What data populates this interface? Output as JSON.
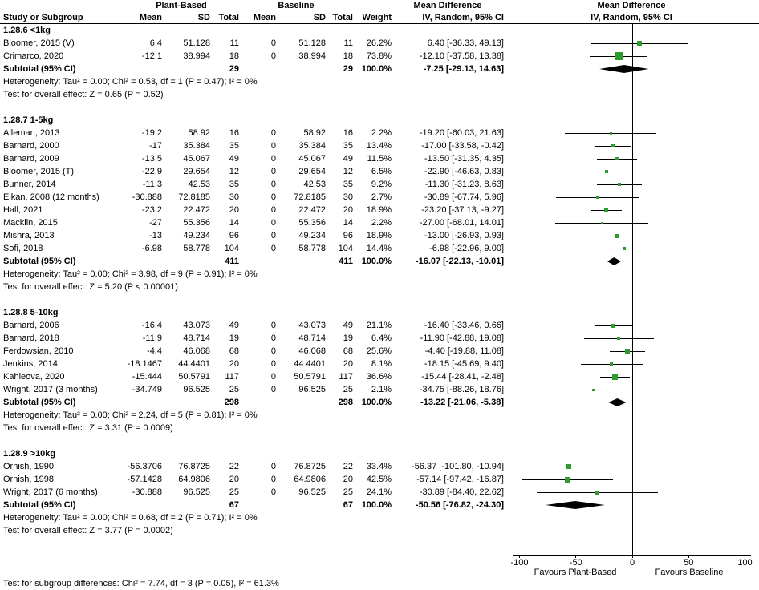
{
  "header": {
    "plant_based": "Plant-Based",
    "baseline": "Baseline",
    "mean_difference": "Mean Difference",
    "study_or_subgroup": "Study or Subgroup",
    "mean": "Mean",
    "sd": "SD",
    "total": "Total",
    "weight": "Weight",
    "ci_method": "IV, Random, 95% CI"
  },
  "colors": {
    "marker_green": "#2E9B2E",
    "diamond_black": "#000000",
    "line_black": "#000000"
  },
  "chart_data": {
    "type": "forest",
    "effect_measure": "Mean Difference, IV, Random, 95% CI",
    "x_axis": {
      "ticks": [
        -100,
        -50,
        0,
        50,
        100
      ],
      "xlim": [
        -105,
        105
      ],
      "label_left": "Favours Plant-Based",
      "label_right": "Favours Baseline"
    },
    "subtotal_label": "Subtotal (95% CI)",
    "groups": [
      {
        "title": "1.28.6 <1kg",
        "studies": [
          {
            "name": "Bloomer, 2015 (V)",
            "mean1": "6.4",
            "sd1": "51.128",
            "total1": "11",
            "mean2": "0",
            "sd2": "51.128",
            "total2": "11",
            "weight": "26.2%",
            "ci_text": "6.40 [-36.33, 49.13]",
            "est": 6.4,
            "lo": -36.33,
            "hi": 49.13,
            "w": 26.2
          },
          {
            "name": "Crimarco, 2020",
            "mean1": "-12.1",
            "sd1": "38.994",
            "total1": "18",
            "mean2": "0",
            "sd2": "38.994",
            "total2": "18",
            "weight": "73.8%",
            "ci_text": "-12.10 [-37.58, 13.38]",
            "est": -12.1,
            "lo": -37.58,
            "hi": 13.38,
            "w": 73.8
          }
        ],
        "subtotal": {
          "total1": "29",
          "total2": "29",
          "weight": "100.0%",
          "ci_text": "-7.25 [-29.13, 14.63]",
          "est": -7.25,
          "lo": -29.13,
          "hi": 14.63
        },
        "heterogeneity": "Heterogeneity: Tau² = 0.00; Chi² = 0.53, df = 1 (P = 0.47); I² = 0%",
        "overall_effect": "Test for overall effect: Z = 0.65 (P = 0.52)"
      },
      {
        "title": "1.28.7 1-5kg",
        "studies": [
          {
            "name": "Alleman, 2013",
            "mean1": "-19.2",
            "sd1": "58.92",
            "total1": "16",
            "mean2": "0",
            "sd2": "58.92",
            "total2": "16",
            "weight": "2.2%",
            "ci_text": "-19.20 [-60.03, 21.63]",
            "est": -19.2,
            "lo": -60.03,
            "hi": 21.63,
            "w": 2.2
          },
          {
            "name": "Barnard, 2000",
            "mean1": "-17",
            "sd1": "35.384",
            "total1": "35",
            "mean2": "0",
            "sd2": "35.384",
            "total2": "35",
            "weight": "13.4%",
            "ci_text": "-17.00 [-33.58, -0.42]",
            "est": -17,
            "lo": -33.58,
            "hi": -0.42,
            "w": 13.4
          },
          {
            "name": "Barnard, 2009",
            "mean1": "-13.5",
            "sd1": "45.067",
            "total1": "49",
            "mean2": "0",
            "sd2": "45.067",
            "total2": "49",
            "weight": "11.5%",
            "ci_text": "-13.50 [-31.35, 4.35]",
            "est": -13.5,
            "lo": -31.35,
            "hi": 4.35,
            "w": 11.5
          },
          {
            "name": "Bloomer, 2015 (T)",
            "mean1": "-22.9",
            "sd1": "29.654",
            "total1": "12",
            "mean2": "0",
            "sd2": "29.654",
            "total2": "12",
            "weight": "6.5%",
            "ci_text": "-22.90 [-46.63, 0.83]",
            "est": -22.9,
            "lo": -46.63,
            "hi": 0.83,
            "w": 6.5
          },
          {
            "name": "Bunner, 2014",
            "mean1": "-11.3",
            "sd1": "42.53",
            "total1": "35",
            "mean2": "0",
            "sd2": "42.53",
            "total2": "35",
            "weight": "9.2%",
            "ci_text": "-11.30 [-31.23, 8.63]",
            "est": -11.3,
            "lo": -31.23,
            "hi": 8.63,
            "w": 9.2
          },
          {
            "name": "Elkan, 2008 (12 months)",
            "mean1": "-30.888",
            "sd1": "72.8185",
            "total1": "30",
            "mean2": "0",
            "sd2": "72.8185",
            "total2": "30",
            "weight": "2.7%",
            "ci_text": "-30.89 [-67.74, 5.96]",
            "est": -30.89,
            "lo": -67.74,
            "hi": 5.96,
            "w": 2.7
          },
          {
            "name": "Hall, 2021",
            "mean1": "-23.2",
            "sd1": "22.472",
            "total1": "20",
            "mean2": "0",
            "sd2": "22.472",
            "total2": "20",
            "weight": "18.9%",
            "ci_text": "-23.20 [-37.13, -9.27]",
            "est": -23.2,
            "lo": -37.13,
            "hi": -9.27,
            "w": 18.9
          },
          {
            "name": "Macklin, 2015",
            "mean1": "-27",
            "sd1": "55.356",
            "total1": "14",
            "mean2": "0",
            "sd2": "55.356",
            "total2": "14",
            "weight": "2.2%",
            "ci_text": "-27.00 [-68.01, 14.01]",
            "est": -27,
            "lo": -68.01,
            "hi": 14.01,
            "w": 2.2
          },
          {
            "name": "Mishra, 2013",
            "mean1": "-13",
            "sd1": "49.234",
            "total1": "96",
            "mean2": "0",
            "sd2": "49.234",
            "total2": "96",
            "weight": "18.9%",
            "ci_text": "-13.00 [-26.93, 0.93]",
            "est": -13,
            "lo": -26.93,
            "hi": 0.93,
            "w": 18.9
          },
          {
            "name": "Sofi, 2018",
            "mean1": "-6.98",
            "sd1": "58.778",
            "total1": "104",
            "mean2": "0",
            "sd2": "58.778",
            "total2": "104",
            "weight": "14.4%",
            "ci_text": "-6.98 [-22.96, 9.00]",
            "est": -6.98,
            "lo": -22.96,
            "hi": 9,
            "w": 14.4
          }
        ],
        "subtotal": {
          "total1": "411",
          "total2": "411",
          "weight": "100.0%",
          "ci_text": "-16.07 [-22.13, -10.01]",
          "est": -16.07,
          "lo": -22.13,
          "hi": -10.01
        },
        "heterogeneity": "Heterogeneity: Tau² = 0.00; Chi² = 3.98, df = 9 (P = 0.91); I² = 0%",
        "overall_effect": "Test for overall effect: Z = 5.20 (P < 0.00001)"
      },
      {
        "title": "1.28.8 5-10kg",
        "studies": [
          {
            "name": "Barnard, 2006",
            "mean1": "-16.4",
            "sd1": "43.073",
            "total1": "49",
            "mean2": "0",
            "sd2": "43.073",
            "total2": "49",
            "weight": "21.1%",
            "ci_text": "-16.40 [-33.46, 0.66]",
            "est": -16.4,
            "lo": -33.46,
            "hi": 0.66,
            "w": 21.1
          },
          {
            "name": "Barnard, 2018",
            "mean1": "-11.9",
            "sd1": "48.714",
            "total1": "19",
            "mean2": "0",
            "sd2": "48.714",
            "total2": "19",
            "weight": "6.4%",
            "ci_text": "-11.90 [-42.88, 19.08]",
            "est": -11.9,
            "lo": -42.88,
            "hi": 19.08,
            "w": 6.4
          },
          {
            "name": "Ferdowsian, 2010",
            "mean1": "-4.4",
            "sd1": "46.068",
            "total1": "68",
            "mean2": "0",
            "sd2": "46.068",
            "total2": "68",
            "weight": "25.6%",
            "ci_text": "-4.40 [-19.88, 11.08]",
            "est": -4.4,
            "lo": -19.88,
            "hi": 11.08,
            "w": 25.6
          },
          {
            "name": "Jenkins, 2014",
            "mean1": "-18.1467",
            "sd1": "44.4401",
            "total1": "20",
            "mean2": "0",
            "sd2": "44.4401",
            "total2": "20",
            "weight": "8.1%",
            "ci_text": "-18.15 [-45.69, 9.40]",
            "est": -18.15,
            "lo": -45.69,
            "hi": 9.4,
            "w": 8.1
          },
          {
            "name": "Kahleova, 2020",
            "mean1": "-15.444",
            "sd1": "50.5791",
            "total1": "117",
            "mean2": "0",
            "sd2": "50.5791",
            "total2": "117",
            "weight": "36.6%",
            "ci_text": "-15.44 [-28.41, -2.48]",
            "est": -15.44,
            "lo": -28.41,
            "hi": -2.48,
            "w": 36.6
          },
          {
            "name": "Wright, 2017 (3 months)",
            "mean1": "-34.749",
            "sd1": "96.525",
            "total1": "25",
            "mean2": "0",
            "sd2": "96.525",
            "total2": "25",
            "weight": "2.1%",
            "ci_text": "-34.75 [-88.26, 18.76]",
            "est": -34.75,
            "lo": -88.26,
            "hi": 18.76,
            "w": 2.1
          }
        ],
        "subtotal": {
          "total1": "298",
          "total2": "298",
          "weight": "100.0%",
          "ci_text": "-13.22 [-21.06, -5.38]",
          "est": -13.22,
          "lo": -21.06,
          "hi": -5.38
        },
        "heterogeneity": "Heterogeneity: Tau² = 0.00; Chi² = 2.24, df = 5 (P = 0.81); I² = 0%",
        "overall_effect": "Test for overall effect: Z = 3.31 (P = 0.0009)"
      },
      {
        "title": "1.28.9 >10kg",
        "studies": [
          {
            "name": "Ornish, 1990",
            "mean1": "-56.3706",
            "sd1": "76.8725",
            "total1": "22",
            "mean2": "0",
            "sd2": "76.8725",
            "total2": "22",
            "weight": "33.4%",
            "ci_text": "-56.37 [-101.80, -10.94]",
            "est": -56.37,
            "lo": -101.8,
            "hi": -10.94,
            "w": 33.4
          },
          {
            "name": "Ornish, 1998",
            "mean1": "-57.1428",
            "sd1": "64.9806",
            "total1": "20",
            "mean2": "0",
            "sd2": "64.9806",
            "total2": "20",
            "weight": "42.5%",
            "ci_text": "-57.14 [-97.42, -16.87]",
            "est": -57.14,
            "lo": -97.42,
            "hi": -16.87,
            "w": 42.5
          },
          {
            "name": "Wright, 2017 (6 months)",
            "mean1": "-30.888",
            "sd1": "96.525",
            "total1": "25",
            "mean2": "0",
            "sd2": "96.525",
            "total2": "25",
            "weight": "24.1%",
            "ci_text": "-30.89 [-84.40, 22.62]",
            "est": -30.89,
            "lo": -84.4,
            "hi": 22.62,
            "w": 24.1
          }
        ],
        "subtotal": {
          "total1": "67",
          "total2": "67",
          "weight": "100.0%",
          "ci_text": "-50.56 [-76.82, -24.30]",
          "est": -50.56,
          "lo": -76.82,
          "hi": -24.3
        },
        "heterogeneity": "Heterogeneity: Tau² = 0.00; Chi² = 0.68, df = 2 (P = 0.71); I² = 0%",
        "overall_effect": "Test for overall effect: Z = 3.77 (P = 0.0002)"
      }
    ],
    "footer_note": "Test for subgroup differences: Chi² = 7.74, df = 3 (P = 0.05), I² = 61.3%"
  }
}
